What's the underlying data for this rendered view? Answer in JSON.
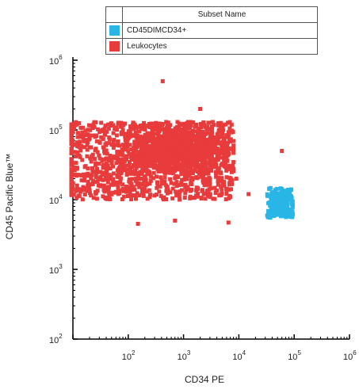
{
  "chart_data": {
    "type": "scatter",
    "xlabel": "CD34 PE",
    "ylabel": "CD45 Pacific Blue™",
    "x_scale": "log",
    "y_scale": "log",
    "xlim": [
      10,
      1000000
    ],
    "ylim": [
      100,
      1000000
    ],
    "x_ticks": [
      {
        "base": "10",
        "exp": "2"
      },
      {
        "base": "10",
        "exp": "3"
      },
      {
        "base": "10",
        "exp": "4"
      },
      {
        "base": "10",
        "exp": "5"
      },
      {
        "base": "10",
        "exp": "6"
      }
    ],
    "y_ticks": [
      {
        "base": "10",
        "exp": "2"
      },
      {
        "base": "10",
        "exp": "3"
      },
      {
        "base": "10",
        "exp": "4"
      },
      {
        "base": "10",
        "exp": "5"
      },
      {
        "base": "10",
        "exp": "6"
      }
    ],
    "grid": false,
    "legend": {
      "header": "Subset Name",
      "placement": "top",
      "entries": [
        {
          "name": "CD45DIMCD34+",
          "color": "#29b6e6"
        },
        {
          "name": "Leukocytes",
          "color": "#e83b3b"
        }
      ]
    },
    "series": [
      {
        "name": "Leukocytes",
        "color": "#e83b3b",
        "marker": "square",
        "cluster": {
          "x_range": [
            7,
            8000
          ],
          "y_range": [
            10000,
            130000
          ],
          "center": [
            800,
            50000
          ],
          "approx_points": 2000
        },
        "outliers": [
          {
            "x": 420,
            "y": 500000
          },
          {
            "x": 15000,
            "y": 12000
          },
          {
            "x": 6500,
            "y": 4700
          },
          {
            "x": 150,
            "y": 4500
          },
          {
            "x": 700,
            "y": 5000
          },
          {
            "x": 2000,
            "y": 200000
          },
          {
            "x": 9000,
            "y": 20000
          },
          {
            "x": 60000,
            "y": 50000
          }
        ]
      },
      {
        "name": "CD45DIMCD34+",
        "color": "#29b6e6",
        "marker": "square",
        "cluster": {
          "x_range": [
            32000,
            95000
          ],
          "y_range": [
            5500,
            15000
          ],
          "center": [
            55000,
            9000
          ],
          "approx_points": 260
        }
      }
    ]
  }
}
